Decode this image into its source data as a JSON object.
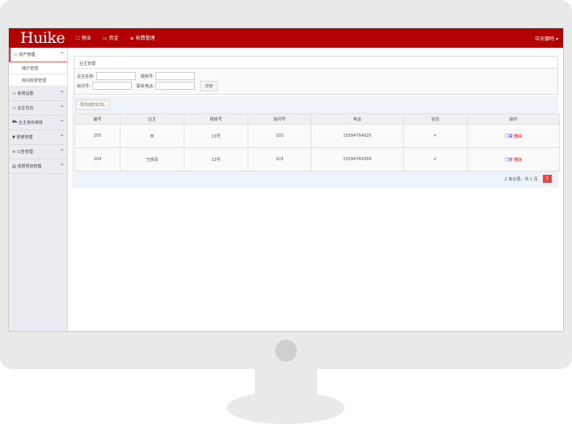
{
  "header": {
    "logo": "Huike",
    "nav": [
      "物业",
      "资金",
      "收费管理"
    ],
    "nav_icons": [
      "folder-icon",
      "money-icon",
      "list-icon"
    ],
    "user": "中天御鸣 ▾"
  },
  "sidebar": {
    "items": [
      {
        "label": "资产管理",
        "icon": "laptop-icon",
        "subs": [
          "储户管理",
          "房间收费管理"
        ]
      },
      {
        "label": "系统设置",
        "icon": "laptop-icon"
      },
      {
        "label": "业主信息",
        "icon": "laptop-icon"
      },
      {
        "label": "业主身份审核",
        "icon": "cart-icon"
      },
      {
        "label": "报修管理",
        "icon": "filter-icon"
      },
      {
        "label": "公告管理",
        "icon": "list-icon"
      },
      {
        "label": "收费项目管理",
        "icon": "file-icon"
      }
    ]
  },
  "search": {
    "title": "业主管理",
    "owner_label": "业主名称:",
    "building_label": "楼栋号:",
    "room_label": "房间号:",
    "phone_label": "联系电话:",
    "button": "搜索"
  },
  "table": {
    "export": "导出到EXCEL",
    "headers": [
      "编号",
      "业主",
      "楼栋号",
      "房间号",
      "电话",
      "状态",
      "操作"
    ],
    "rows": [
      [
        "105",
        "朱",
        "13号",
        "103",
        "15094764625",
        "✔"
      ],
      [
        "104",
        "王晓军",
        "13号",
        "103",
        "15094764399",
        "✔"
      ]
    ],
    "ops": [
      "门禁",
      "删除"
    ]
  },
  "pagination": {
    "summary": "2 条记录，共 1 页",
    "current": "1"
  },
  "colors": {
    "header": "#b30000",
    "accent": "#e44444"
  }
}
